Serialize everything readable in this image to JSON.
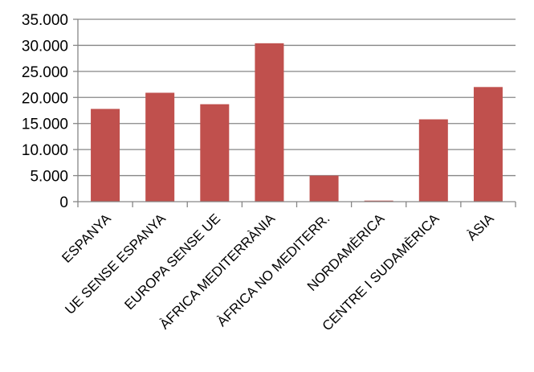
{
  "chart_data": {
    "type": "bar",
    "categories": [
      "ESPANYA",
      "UE SENSE ESPANYA",
      "EUROPA SENSE UE",
      "ÀFRICA MEDITERRÀNIA",
      "ÀFRICA NO MEDITERR.",
      "NORDAMÈRICA",
      "CENTRE I SUDAMÈRICA",
      "ÀSIA"
    ],
    "values": [
      17800,
      20900,
      18700,
      30400,
      5000,
      200,
      15800,
      22000
    ],
    "yticks": [
      "0",
      "5.000",
      "10.000",
      "15.000",
      "20.000",
      "25.000",
      "30.000",
      "35.000"
    ],
    "ylim": [
      0,
      35000
    ],
    "grid": true,
    "bar_color": "#C0504D",
    "grid_color": "#868686",
    "axis_color": "#868686"
  }
}
